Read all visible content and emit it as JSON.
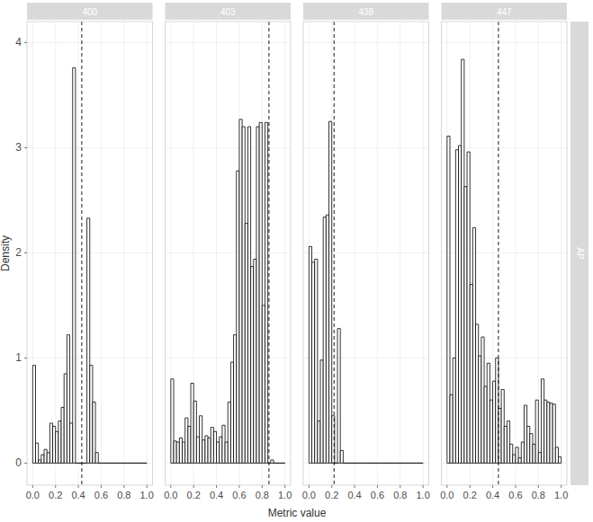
{
  "chart_data": {
    "type": "histogram",
    "x_label": "Metric value",
    "y_label": "Density",
    "row_label": "AP",
    "xlim": [
      -0.05,
      1.05
    ],
    "ylim": [
      -0.21,
      4.2
    ],
    "xticks": [
      {
        "value": 0,
        "label": "0.0"
      },
      0.2,
      0.4,
      0.6,
      0.8,
      {
        "value": 1,
        "label": "1.0"
      }
    ],
    "yticks": [
      0,
      1,
      2,
      3,
      4
    ],
    "grid": true,
    "color": "#000000",
    "line_style": "dashed",
    "panels": [
      {
        "title": "400",
        "bins": [
          0,
          0.025,
          0.05,
          0.075,
          0.1,
          0.125,
          0.15,
          0.175,
          0.2,
          0.225,
          0.25,
          0.275,
          0.3,
          0.325,
          0.35,
          0.375,
          0.4,
          0.425,
          0.45,
          0.475,
          0.5,
          0.525,
          0.55,
          0.575,
          0.6,
          0.625,
          0.65,
          0.675,
          0.7,
          0.725,
          0.75,
          0.775,
          0.8,
          0.825,
          0.85,
          0.875,
          0.9,
          0.925,
          0.95,
          0.975,
          1
        ],
        "counts": [
          0.93,
          0.19,
          0.03,
          0.08,
          0.13,
          0.1,
          0.38,
          0.35,
          0.3,
          0.4,
          0.53,
          0.85,
          1.22,
          0.38,
          3.76,
          0,
          0,
          0,
          0,
          2.33,
          0.93,
          0.58,
          0.1,
          0,
          0,
          0,
          0,
          0,
          0,
          0,
          0,
          0,
          0,
          0,
          0,
          0,
          0,
          0,
          0,
          0
        ],
        "vline": 0.43
      },
      {
        "title": "403",
        "bins": [
          0,
          0.025,
          0.05,
          0.075,
          0.1,
          0.125,
          0.15,
          0.175,
          0.2,
          0.225,
          0.25,
          0.275,
          0.3,
          0.325,
          0.35,
          0.375,
          0.4,
          0.425,
          0.45,
          0.475,
          0.5,
          0.525,
          0.55,
          0.575,
          0.6,
          0.625,
          0.65,
          0.675,
          0.7,
          0.725,
          0.75,
          0.775,
          0.8,
          0.825,
          0.85,
          0.875,
          0.9,
          0.925,
          0.95,
          0.975,
          1
        ],
        "counts": [
          0.8,
          0.21,
          0.2,
          0.24,
          0.2,
          0.43,
          0.35,
          0.76,
          0.59,
          0.25,
          0.45,
          0.22,
          0.26,
          0.24,
          0.34,
          0.3,
          0.2,
          0.25,
          0.36,
          0.2,
          0.58,
          0.96,
          1.22,
          2.78,
          3.27,
          3.2,
          2.28,
          3.2,
          1.87,
          1.94,
          3.2,
          3.24,
          1.5,
          3.24,
          0,
          0.03,
          0,
          0,
          0,
          0
        ],
        "vline": 0.86
      },
      {
        "title": "438",
        "bins": [
          0,
          0.025,
          0.05,
          0.075,
          0.1,
          0.125,
          0.15,
          0.175,
          0.2,
          0.225,
          0.25,
          0.275,
          0.3,
          0.325,
          0.35,
          0.375,
          0.4,
          0.425,
          0.45,
          0.475,
          0.5,
          0.525,
          0.55,
          0.575,
          0.6,
          0.625,
          0.65,
          0.675,
          0.7,
          0.725,
          0.75,
          0.775,
          0.8,
          0.825,
          0.85,
          0.875,
          0.9,
          0.925,
          0.95,
          0.975,
          1
        ],
        "counts": [
          2.06,
          1.91,
          1.94,
          0.4,
          0.98,
          2.34,
          2.36,
          3.25,
          0.45,
          0,
          1.28,
          0.12,
          0,
          0,
          0,
          0,
          0,
          0,
          0,
          0,
          0,
          0,
          0,
          0,
          0,
          0,
          0,
          0,
          0,
          0,
          0,
          0,
          0,
          0,
          0,
          0,
          0,
          0,
          0,
          0
        ],
        "vline": 0.22
      },
      {
        "title": "447",
        "bins": [
          0,
          0.025,
          0.05,
          0.075,
          0.1,
          0.125,
          0.15,
          0.175,
          0.2,
          0.225,
          0.25,
          0.275,
          0.3,
          0.325,
          0.35,
          0.375,
          0.4,
          0.425,
          0.45,
          0.475,
          0.5,
          0.525,
          0.55,
          0.575,
          0.6,
          0.625,
          0.65,
          0.675,
          0.7,
          0.725,
          0.75,
          0.775,
          0.8,
          0.825,
          0.85,
          0.875,
          0.9,
          0.925,
          0.95,
          0.975,
          1
        ],
        "counts": [
          3.11,
          0.65,
          1.0,
          2.98,
          3.02,
          3.84,
          2.63,
          2.96,
          1.7,
          2.24,
          1.32,
          1.02,
          1.2,
          0.73,
          0.95,
          0.6,
          0.78,
          1.0,
          0.52,
          0.7,
          0.35,
          0.4,
          0.18,
          0.08,
          0.15,
          0.05,
          0.2,
          0.55,
          0.35,
          0.28,
          0.18,
          0.6,
          0.1,
          0.8,
          0.6,
          0.58,
          0.57,
          0.56,
          0.15,
          0.06
        ],
        "vline": 0.45
      }
    ]
  }
}
